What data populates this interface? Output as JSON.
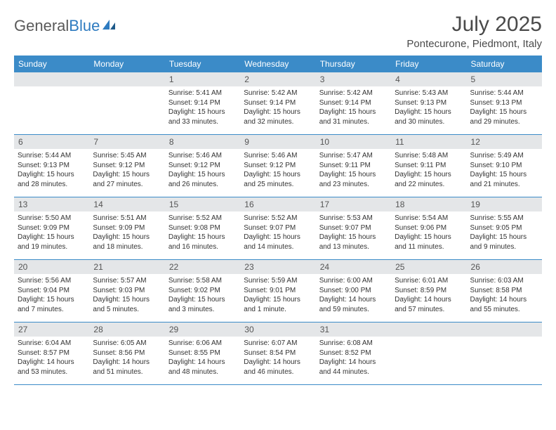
{
  "logo": {
    "text1": "General",
    "text2": "Blue"
  },
  "title": "July 2025",
  "location": "Pontecurone, Piedmont, Italy",
  "colors": {
    "header_bg": "#3b8bc8",
    "header_text": "#ffffff",
    "daynum_bg": "#e4e6e8",
    "border": "#3b8bc8",
    "logo_gray": "#5a5a5a",
    "logo_blue": "#2e7bc0"
  },
  "day_names": [
    "Sunday",
    "Monday",
    "Tuesday",
    "Wednesday",
    "Thursday",
    "Friday",
    "Saturday"
  ],
  "weeks": [
    [
      {
        "empty": true
      },
      {
        "empty": true
      },
      {
        "n": "1",
        "sr": "5:41 AM",
        "ss": "9:14 PM",
        "dl": "15 hours and 33 minutes."
      },
      {
        "n": "2",
        "sr": "5:42 AM",
        "ss": "9:14 PM",
        "dl": "15 hours and 32 minutes."
      },
      {
        "n": "3",
        "sr": "5:42 AM",
        "ss": "9:14 PM",
        "dl": "15 hours and 31 minutes."
      },
      {
        "n": "4",
        "sr": "5:43 AM",
        "ss": "9:13 PM",
        "dl": "15 hours and 30 minutes."
      },
      {
        "n": "5",
        "sr": "5:44 AM",
        "ss": "9:13 PM",
        "dl": "15 hours and 29 minutes."
      }
    ],
    [
      {
        "n": "6",
        "sr": "5:44 AM",
        "ss": "9:13 PM",
        "dl": "15 hours and 28 minutes."
      },
      {
        "n": "7",
        "sr": "5:45 AM",
        "ss": "9:12 PM",
        "dl": "15 hours and 27 minutes."
      },
      {
        "n": "8",
        "sr": "5:46 AM",
        "ss": "9:12 PM",
        "dl": "15 hours and 26 minutes."
      },
      {
        "n": "9",
        "sr": "5:46 AM",
        "ss": "9:12 PM",
        "dl": "15 hours and 25 minutes."
      },
      {
        "n": "10",
        "sr": "5:47 AM",
        "ss": "9:11 PM",
        "dl": "15 hours and 23 minutes."
      },
      {
        "n": "11",
        "sr": "5:48 AM",
        "ss": "9:11 PM",
        "dl": "15 hours and 22 minutes."
      },
      {
        "n": "12",
        "sr": "5:49 AM",
        "ss": "9:10 PM",
        "dl": "15 hours and 21 minutes."
      }
    ],
    [
      {
        "n": "13",
        "sr": "5:50 AM",
        "ss": "9:09 PM",
        "dl": "15 hours and 19 minutes."
      },
      {
        "n": "14",
        "sr": "5:51 AM",
        "ss": "9:09 PM",
        "dl": "15 hours and 18 minutes."
      },
      {
        "n": "15",
        "sr": "5:52 AM",
        "ss": "9:08 PM",
        "dl": "15 hours and 16 minutes."
      },
      {
        "n": "16",
        "sr": "5:52 AM",
        "ss": "9:07 PM",
        "dl": "15 hours and 14 minutes."
      },
      {
        "n": "17",
        "sr": "5:53 AM",
        "ss": "9:07 PM",
        "dl": "15 hours and 13 minutes."
      },
      {
        "n": "18",
        "sr": "5:54 AM",
        "ss": "9:06 PM",
        "dl": "15 hours and 11 minutes."
      },
      {
        "n": "19",
        "sr": "5:55 AM",
        "ss": "9:05 PM",
        "dl": "15 hours and 9 minutes."
      }
    ],
    [
      {
        "n": "20",
        "sr": "5:56 AM",
        "ss": "9:04 PM",
        "dl": "15 hours and 7 minutes."
      },
      {
        "n": "21",
        "sr": "5:57 AM",
        "ss": "9:03 PM",
        "dl": "15 hours and 5 minutes."
      },
      {
        "n": "22",
        "sr": "5:58 AM",
        "ss": "9:02 PM",
        "dl": "15 hours and 3 minutes."
      },
      {
        "n": "23",
        "sr": "5:59 AM",
        "ss": "9:01 PM",
        "dl": "15 hours and 1 minute."
      },
      {
        "n": "24",
        "sr": "6:00 AM",
        "ss": "9:00 PM",
        "dl": "14 hours and 59 minutes."
      },
      {
        "n": "25",
        "sr": "6:01 AM",
        "ss": "8:59 PM",
        "dl": "14 hours and 57 minutes."
      },
      {
        "n": "26",
        "sr": "6:03 AM",
        "ss": "8:58 PM",
        "dl": "14 hours and 55 minutes."
      }
    ],
    [
      {
        "n": "27",
        "sr": "6:04 AM",
        "ss": "8:57 PM",
        "dl": "14 hours and 53 minutes."
      },
      {
        "n": "28",
        "sr": "6:05 AM",
        "ss": "8:56 PM",
        "dl": "14 hours and 51 minutes."
      },
      {
        "n": "29",
        "sr": "6:06 AM",
        "ss": "8:55 PM",
        "dl": "14 hours and 48 minutes."
      },
      {
        "n": "30",
        "sr": "6:07 AM",
        "ss": "8:54 PM",
        "dl": "14 hours and 46 minutes."
      },
      {
        "n": "31",
        "sr": "6:08 AM",
        "ss": "8:52 PM",
        "dl": "14 hours and 44 minutes."
      },
      {
        "empty": true
      },
      {
        "empty": true
      }
    ]
  ],
  "labels": {
    "sunrise": "Sunrise: ",
    "sunset": "Sunset: ",
    "daylight": "Daylight: "
  }
}
